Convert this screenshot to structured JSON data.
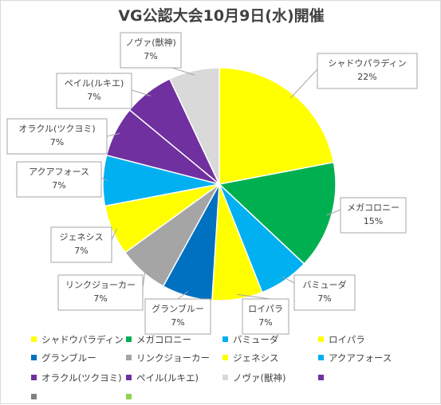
{
  "chart_data": {
    "type": "pie",
    "title": "VG公認大会10月9日(水)開催",
    "slices": [
      {
        "name": "シャドウパラディン",
        "value": 22,
        "label": "22%",
        "color": "#ffff00"
      },
      {
        "name": "メガコロニー",
        "value": 15,
        "label": "15%",
        "color": "#00b050"
      },
      {
        "name": "バミューダ",
        "value": 7,
        "label": "7%",
        "color": "#00b0f0"
      },
      {
        "name": "ロイパラ",
        "value": 7,
        "label": "7%",
        "color": "#ffff00"
      },
      {
        "name": "グランブルー",
        "value": 7,
        "label": "7%",
        "color": "#0070c0"
      },
      {
        "name": "リンクジョーカー",
        "value": 7,
        "label": "7%",
        "color": "#a5a5a5"
      },
      {
        "name": "ジェネシス",
        "value": 7,
        "label": "7%",
        "color": "#ffff00"
      },
      {
        "name": "アクアフォース",
        "value": 7,
        "label": "7%",
        "color": "#00b0f0"
      },
      {
        "name": "オラクル(ツクヨミ)",
        "value": 7,
        "label": "7%",
        "color": "#7030a0"
      },
      {
        "name": "ペイル(ルキエ)",
        "value": 7,
        "label": "7%",
        "color": "#7030a0"
      },
      {
        "name": "ノヴァ(獣神)",
        "value": 7,
        "label": "7%",
        "color": "#d9d9d9"
      }
    ],
    "legend": {
      "placement": "bottom",
      "items": [
        {
          "name": "シャドウパラディン",
          "color": "#ffff00"
        },
        {
          "name": "メガコロニー",
          "color": "#00b050"
        },
        {
          "name": "バミューダ",
          "color": "#00b0f0"
        },
        {
          "name": "ロイパラ",
          "color": "#ffff00"
        },
        {
          "name": "グランブルー",
          "color": "#0070c0"
        },
        {
          "name": "リンクジョーカー",
          "color": "#a5a5a5"
        },
        {
          "name": "ジェネシス",
          "color": "#ffff00"
        },
        {
          "name": "アクアフォース",
          "color": "#00b0f0"
        },
        {
          "name": "オラクル(ツクヨミ)",
          "color": "#7030a0"
        },
        {
          "name": "ペイル(ルキエ)",
          "color": "#7030a0"
        },
        {
          "name": "ノヴァ(獣神)",
          "color": "#d9d9d9"
        },
        {
          "name": "",
          "color": "#7030a0"
        },
        {
          "name": "",
          "color": "#808080"
        },
        {
          "name": "",
          "color": "#92d050"
        }
      ]
    }
  }
}
